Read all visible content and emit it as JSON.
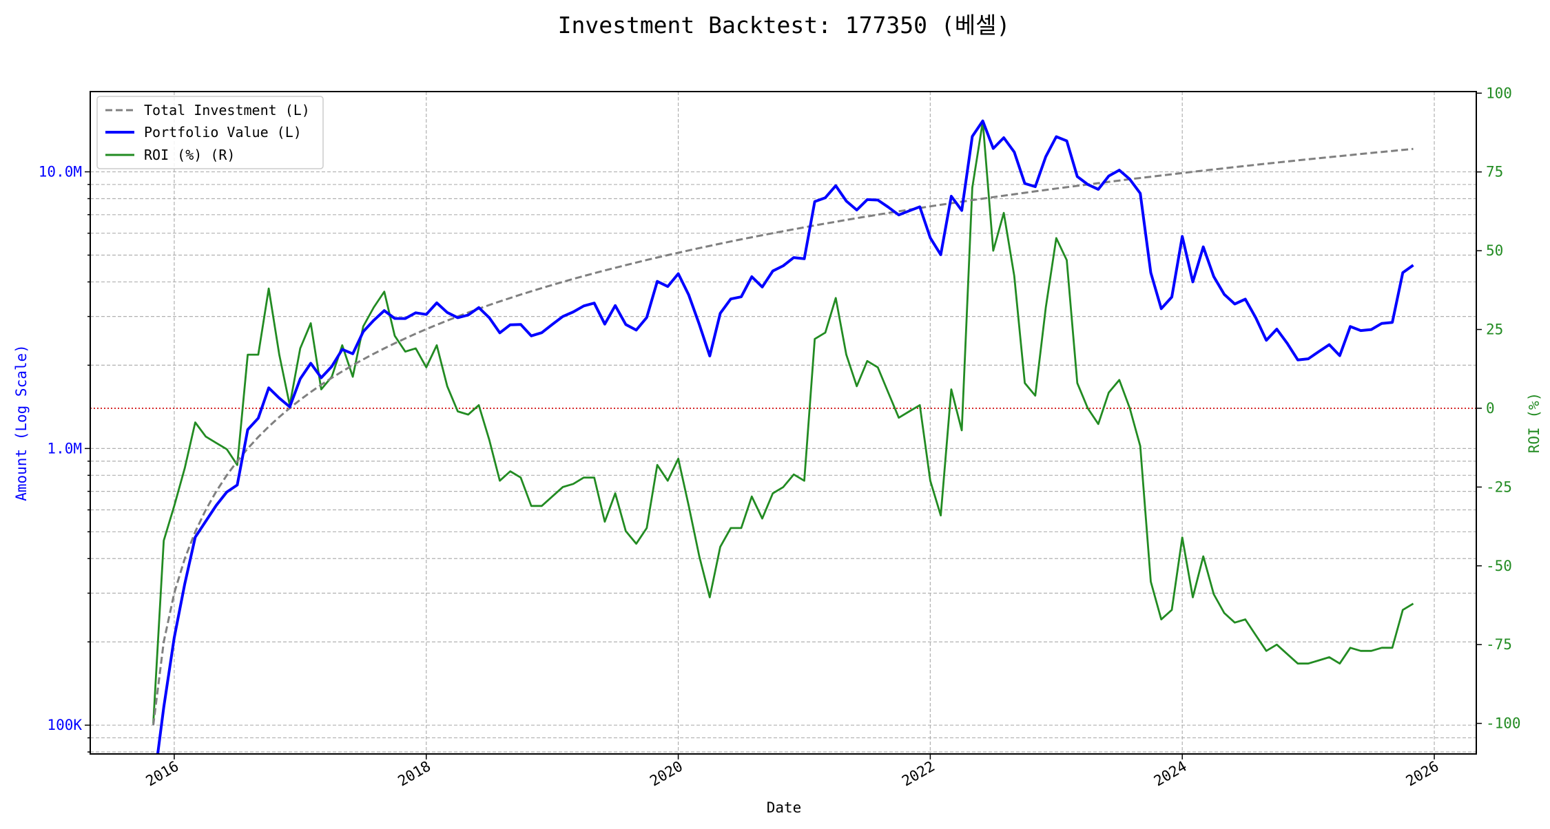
{
  "chart_data": {
    "type": "line",
    "title": "Investment Backtest: 177350 (베셀)",
    "xlabel": "Date",
    "ylabel_left": "Amount (Log Scale)",
    "ylabel_right": "ROI (%)",
    "left_scale": "log",
    "ylim_left": [
      78700,
      19500000
    ],
    "ylim_right": [
      -109.7,
      100.5
    ],
    "xlim": [
      "2015-05",
      "2026-05"
    ],
    "grid": true,
    "legend_position": "top-left",
    "x_tick_labels": [
      "2016",
      "2018",
      "2020",
      "2022",
      "2024",
      "2026"
    ],
    "left_tick_labels": [
      {
        "value": 100000,
        "label": "100K"
      },
      {
        "value": 1000000,
        "label": "1.0M"
      },
      {
        "value": 10000000,
        "label": "10.0M"
      }
    ],
    "right_tick_labels": [
      {
        "value": -100,
        "label": "-100"
      },
      {
        "value": -75,
        "label": "-75"
      },
      {
        "value": -50,
        "label": "-50"
      },
      {
        "value": -25,
        "label": "-25"
      },
      {
        "value": 0,
        "label": "0"
      },
      {
        "value": 25,
        "label": "25"
      },
      {
        "value": 50,
        "label": "50"
      },
      {
        "value": 75,
        "label": "75"
      },
      {
        "value": 100,
        "label": "100"
      }
    ],
    "reference_line": {
      "axis": "right",
      "value": 0,
      "color": "#d62728",
      "style": "dotted"
    },
    "dates_start": "2015-11",
    "series": [
      {
        "name": "Total Investment (L)",
        "axis": "left",
        "color": "#808080",
        "style": "dashed",
        "values": [
          100000,
          200000,
          300000,
          400000,
          500000,
          600000,
          700000,
          800000,
          900000,
          1000000,
          1100000,
          1200000,
          1300000,
          1400000,
          1500000,
          1600000,
          1700000,
          1800000,
          1900000,
          2000000,
          2100000,
          2200000,
          2300000,
          2400000,
          2500000,
          2600000,
          2700000,
          2800000,
          2900000,
          3000000,
          3100000,
          3200000,
          3300000,
          3400000,
          3500000,
          3600000,
          3700000,
          3800000,
          3900000,
          4000000,
          4100000,
          4200000,
          4300000,
          4400000,
          4500000,
          4600000,
          4700000,
          4800000,
          4900000,
          5000000,
          5100000,
          5200000,
          5300000,
          5400000,
          5500000,
          5600000,
          5700000,
          5800000,
          5900000,
          6000000,
          6100000,
          6200000,
          6300000,
          6400000,
          6500000,
          6600000,
          6700000,
          6800000,
          6900000,
          7000000,
          7100000,
          7200000,
          7300000,
          7400000,
          7500000,
          7600000,
          7700000,
          7800000,
          7900000,
          8000000,
          8100000,
          8200000,
          8300000,
          8400000,
          8500000,
          8600000,
          8700000,
          8800000,
          8900000,
          9000000,
          9100000,
          9200000,
          9300000,
          9400000,
          9500000,
          9600000,
          9700000,
          9800000,
          9900000,
          10000000,
          10100000,
          10200000,
          10300000,
          10400000,
          10500000,
          10600000,
          10700000,
          10800000,
          10900000,
          11000000,
          11100000,
          11200000,
          11300000,
          11400000,
          11500000,
          11600000,
          11700000,
          11800000,
          11900000,
          12000000,
          12100000
        ]
      },
      {
        "name": "Portfolio Value (L)",
        "axis": "left",
        "color": "#0000ff",
        "style": "solid",
        "values": [
          0,
          116000,
          207000,
          324000,
          478000,
          546000,
          623000,
          696000,
          738000,
          1170000,
          1287000,
          1656000,
          1521000,
          1414000,
          1785000,
          2032000,
          1802000,
          1980000,
          2280000,
          2200000,
          2646000,
          2904000,
          3151000,
          2952000,
          2950000,
          3094000,
          3051000,
          3360000,
          3103000,
          2970000,
          3038000,
          3232000,
          2970000,
          2618000,
          2800000,
          2808000,
          2553000,
          2622000,
          2808000,
          3000000,
          3116000,
          3276000,
          3354000,
          2816000,
          3285000,
          2806000,
          2679000,
          2976000,
          4018000,
          3850000,
          4284000,
          3588000,
          2809000,
          2160000,
          3080000,
          3472000,
          3534000,
          4176000,
          3835000,
          4380000,
          4575000,
          4898000,
          4851000,
          7808000,
          8060000,
          8910000,
          7839000,
          7276000,
          7935000,
          7910000,
          7455000,
          6984000,
          7227000,
          7474000,
          5775000,
          5016000,
          8162000,
          7254000,
          13430000,
          15280000,
          12150000,
          13280000,
          11790000,
          9072000,
          8840000,
          11350000,
          13400000,
          12940000,
          9612000,
          9000000,
          8645000,
          9660000,
          10140000,
          9400000,
          8360000,
          4320000,
          3201000,
          3528000,
          5841000,
          4000000,
          5353000,
          4182000,
          3605000,
          3328000,
          3465000,
          2968000,
          2461000,
          2700000,
          2398000,
          2090000,
          2109000,
          2240000,
          2373000,
          2166000,
          2760000,
          2668000,
          2691000,
          2832000,
          2856000,
          4320000,
          4598000
        ]
      },
      {
        "name": "ROI (%) (R)",
        "axis": "right",
        "color": "#228b22",
        "style": "solid",
        "values": [
          -100,
          -42,
          -31,
          -19,
          -4.5,
          -9,
          -11,
          -13,
          -18,
          17,
          17,
          38,
          17,
          1,
          19,
          27,
          6,
          10,
          20,
          10,
          26,
          32,
          37,
          23,
          18,
          19,
          13,
          20,
          7,
          -1,
          -2,
          1,
          -10,
          -23,
          -20,
          -22,
          -31,
          -31,
          -28,
          -25,
          -24,
          -22,
          -22,
          -36,
          -27,
          -39,
          -43,
          -38,
          -18,
          -23,
          -16,
          -31,
          -47,
          -60,
          -44,
          -38,
          -38,
          -28,
          -35,
          -27,
          -25,
          -21,
          -23,
          22,
          24,
          35,
          17,
          7,
          15,
          13,
          5,
          -3,
          -1,
          1,
          -23,
          -34,
          6,
          -7,
          70,
          91,
          50,
          62,
          42,
          8,
          4,
          32,
          54,
          47,
          8,
          0,
          -5,
          5,
          9,
          0,
          -12,
          -55,
          -67,
          -64,
          -41,
          -60,
          -47,
          -59,
          -65,
          -68,
          -67,
          -72,
          -77,
          -75,
          -78,
          -81,
          -81,
          -80,
          -79,
          -81,
          -76,
          -77,
          -77,
          -76,
          -76,
          -64,
          -62
        ]
      }
    ]
  }
}
